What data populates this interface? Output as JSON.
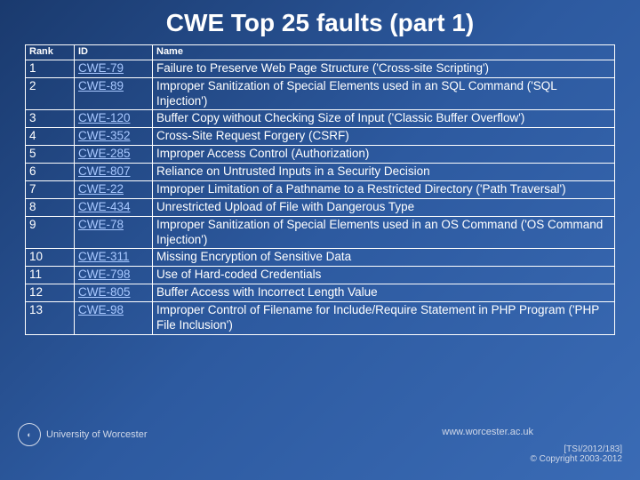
{
  "title": "CWE Top 25 faults (part 1)",
  "table": {
    "headers": [
      "Rank",
      "ID",
      "Name"
    ],
    "rows": [
      {
        "rank": "1",
        "id": "CWE-79",
        "name": "Failure to Preserve Web Page Structure ('Cross-site Scripting')"
      },
      {
        "rank": "2",
        "id": "CWE-89",
        "name": "Improper Sanitization of Special Elements used in an SQL Command ('SQL Injection')"
      },
      {
        "rank": "3",
        "id": "CWE-120",
        "name": "Buffer Copy without Checking Size of Input ('Classic Buffer Overflow')"
      },
      {
        "rank": "4",
        "id": "CWE-352",
        "name": "Cross-Site Request Forgery (CSRF)"
      },
      {
        "rank": "5",
        "id": "CWE-285",
        "name": "Improper Access Control (Authorization)"
      },
      {
        "rank": "6",
        "id": "CWE-807",
        "name": "Reliance on Untrusted Inputs in a Security Decision"
      },
      {
        "rank": "7",
        "id": "CWE-22",
        "name": "Improper Limitation of a Pathname to a Restricted Directory ('Path Traversal')"
      },
      {
        "rank": "8",
        "id": "CWE-434",
        "name": "Unrestricted Upload of File with Dangerous Type"
      },
      {
        "rank": "9",
        "id": "CWE-78",
        "name": "Improper Sanitization of Special Elements used in an OS Command ('OS Command Injection')"
      },
      {
        "rank": "10",
        "id": "CWE-311",
        "name": "Missing Encryption of Sensitive Data"
      },
      {
        "rank": "11",
        "id": "CWE-798",
        "name": "Use of Hard-coded Credentials"
      },
      {
        "rank": "12",
        "id": "CWE-805",
        "name": "Buffer Access with Incorrect Length Value"
      },
      {
        "rank": "13",
        "id": "CWE-98",
        "name": "Improper Control of Filename for Include/Require Statement in PHP Program ('PHP File Inclusion')"
      }
    ]
  },
  "footer": {
    "logo_text": "University of Worcester",
    "url": "www.worcester.ac.uk",
    "ref": "[TSI/2012/183]",
    "copyright": "© Copyright 2003-2012"
  },
  "colors": {
    "bg_start": "#1a3a6e",
    "bg_end": "#3a6bb5",
    "text": "#ffffff",
    "link": "#a8c8ff",
    "footer_text": "#d0d8e8",
    "border": "#ffffff"
  }
}
